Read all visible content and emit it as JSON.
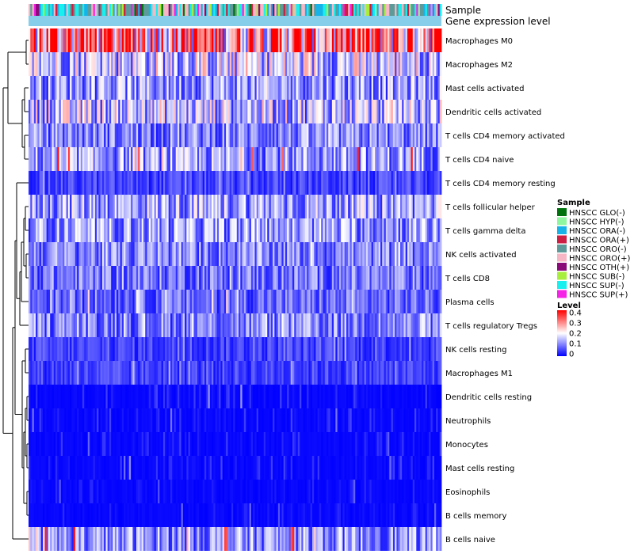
{
  "chart_data": {
    "type": "heatmap",
    "title": "",
    "annotation_tracks": [
      "Sample",
      "Gene expression level"
    ],
    "rows": [
      "Macrophages M0",
      "Macrophages M2",
      "Mast cells activated",
      "Dendritic cells activated",
      "T cells CD4 memory activated",
      "T cells CD4 naive",
      "T cells CD4 memory resting",
      "T cells follicular helper",
      "T cells gamma delta",
      "NK cells activated",
      "T cells CD8",
      "Plasma cells",
      "T cells regulatory  Tregs",
      "NK cells resting",
      "Macrophages M1",
      "Dendritic cells resting",
      "Neutrophils",
      "Monocytes",
      "Mast cells resting",
      "Eosinophils",
      "B cells memory",
      "B cells naive"
    ],
    "row_mean_level": [
      0.3,
      0.16,
      0.12,
      0.15,
      0.1,
      0.12,
      0.05,
      0.13,
      0.12,
      0.1,
      0.09,
      0.08,
      0.1,
      0.05,
      0.05,
      0.03,
      0.03,
      0.03,
      0.03,
      0.02,
      0.02,
      0.11
    ],
    "row_max_level": [
      0.4,
      0.28,
      0.22,
      0.28,
      0.22,
      0.4,
      0.15,
      0.22,
      0.2,
      0.2,
      0.18,
      0.25,
      0.2,
      0.15,
      0.15,
      0.12,
      0.1,
      0.1,
      0.12,
      0.08,
      0.08,
      0.4
    ],
    "n_samples": 230,
    "sample_legend": {
      "title": "Sample",
      "items": [
        {
          "label": "HNSCC GLO(-)",
          "color": "#00730f"
        },
        {
          "label": "HNSCC HYP(-)",
          "color": "#8ff79f"
        },
        {
          "label": "HNSCC ORA(-)",
          "color": "#17b3e8"
        },
        {
          "label": "HNSCC ORA(+)",
          "color": "#cc1f43"
        },
        {
          "label": "HNSCC ORO(-)",
          "color": "#5e9a99"
        },
        {
          "label": "HNSCC ORO(+)",
          "color": "#f6b6c3"
        },
        {
          "label": "HNSCC OTH(+)",
          "color": "#8b0a7a"
        },
        {
          "label": "HNSCC SUB(-)",
          "color": "#a8ee3c"
        },
        {
          "label": "HNSCC SUP(-)",
          "color": "#18efef"
        },
        {
          "label": "HNSCC SUP(+)",
          "color": "#f523e5"
        }
      ]
    },
    "level_legend": {
      "title": "Level",
      "ticks": [
        "0.4",
        "0.3",
        "0.2",
        "0.1",
        "0"
      ],
      "range": [
        0,
        0.4
      ],
      "colors": {
        "low": "#0000ff",
        "mid": "#ffffff",
        "high": "#ff0000"
      }
    },
    "gene_expression_color": "#87ceeb"
  }
}
